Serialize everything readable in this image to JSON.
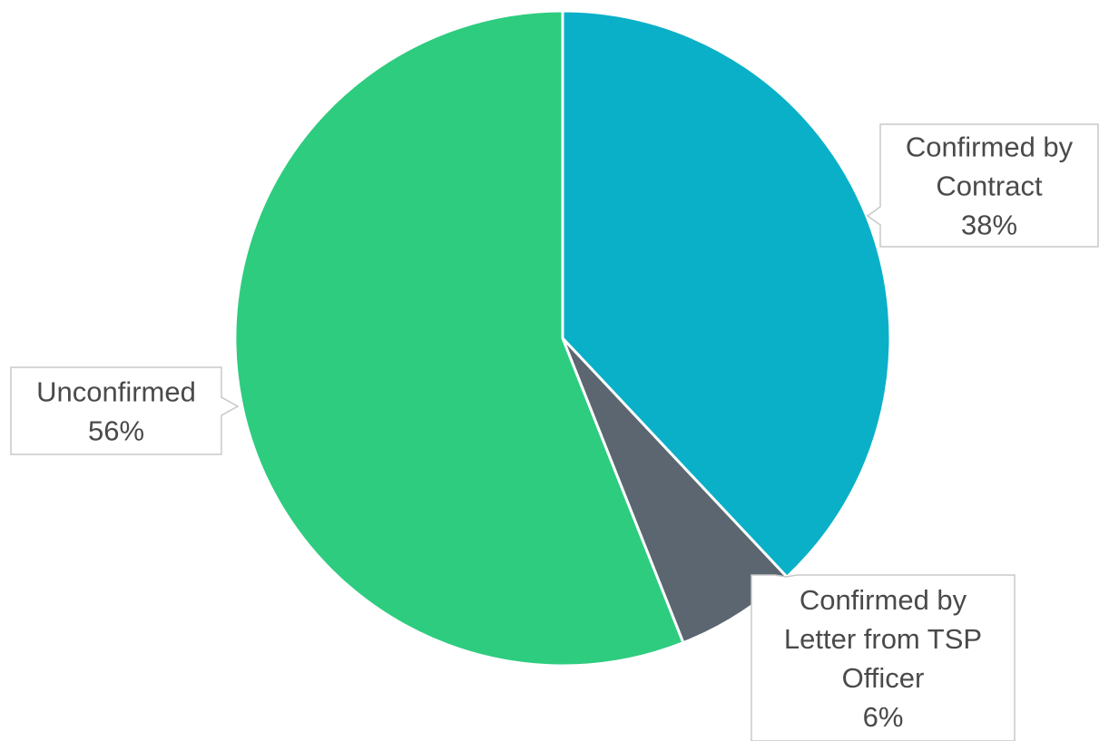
{
  "chart_data": {
    "type": "pie",
    "title": "",
    "start_angle_deg": 0,
    "direction": "clockwise",
    "slices": [
      {
        "label": "Confirmed by Contract",
        "label_lines": [
          "Confirmed by",
          "Contract"
        ],
        "value_label": "38%",
        "value": 38,
        "color": "#0ab0c8"
      },
      {
        "label": "Confirmed by Letter from TSP Officer",
        "label_lines": [
          "Confirmed by",
          "Letter from TSP",
          "Officer"
        ],
        "value_label": "6%",
        "value": 6,
        "color": "#5b6670"
      },
      {
        "label": "Unconfirmed",
        "label_lines": [
          "Unconfirmed"
        ],
        "value_label": "56%",
        "value": 56,
        "color": "#2ecc7f"
      }
    ],
    "legend": "none",
    "label_style": "callout"
  }
}
